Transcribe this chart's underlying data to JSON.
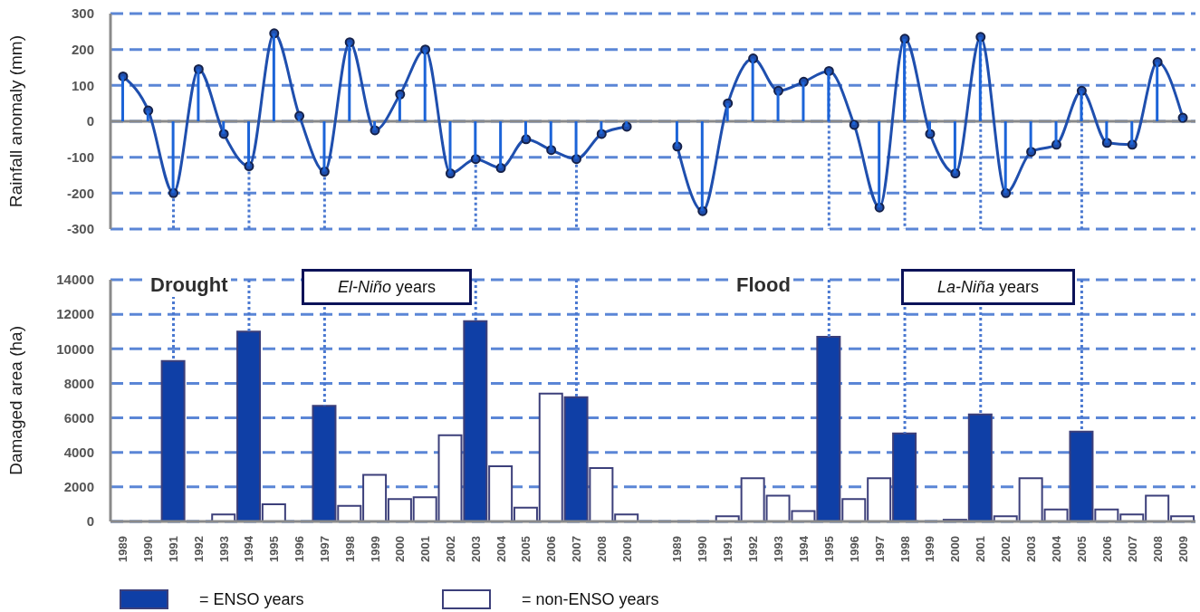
{
  "chart_data": [
    {
      "type": "line",
      "ylabel": "Rainfall anomaly (mm)",
      "categories": [
        "1989",
        "1990",
        "1991",
        "1992",
        "1993",
        "1994",
        "1995",
        "1996",
        "1997",
        "1998",
        "1999",
        "2000",
        "2001",
        "2002",
        "2003",
        "2004",
        "2005",
        "2006",
        "2007",
        "2008",
        "2009"
      ],
      "series": [
        {
          "type": "bar",
          "color": "#1c64d8",
          "values": [
            125,
            30,
            -200,
            145,
            -35,
            -125,
            245,
            15,
            -140,
            220,
            -25,
            75,
            200,
            -145,
            -105,
            -130,
            -50,
            -80,
            -105,
            -35,
            -15
          ]
        },
        {
          "type": "line",
          "color": "#1f4fae",
          "values": [
            125,
            30,
            -200,
            145,
            -35,
            -125,
            245,
            15,
            -140,
            220,
            -25,
            75,
            200,
            -145,
            -105,
            -130,
            -50,
            -80,
            -105,
            -35,
            -15
          ]
        }
      ],
      "ylim": [
        -300,
        300
      ],
      "yticks": [
        -300,
        -200,
        -100,
        0,
        100,
        200,
        300
      ],
      "grid": "y",
      "marker": "circle",
      "tick_labels": "y",
      "ref_lines": [
        {
          "axis": "x",
          "value": "1991",
          "line_style": "dotted",
          "color": "#4a78d0"
        },
        {
          "axis": "x",
          "value": "1994",
          "line_style": "dotted",
          "color": "#4a78d0"
        },
        {
          "axis": "x",
          "value": "1997",
          "line_style": "dotted",
          "color": "#4a78d0"
        },
        {
          "axis": "x",
          "value": "2003",
          "line_style": "dotted",
          "color": "#4a78d0"
        },
        {
          "axis": "x",
          "value": "2007",
          "line_style": "dotted",
          "color": "#4a78d0"
        }
      ]
    },
    {
      "type": "line",
      "categories": [
        null,
        "1989",
        "1990",
        "1991",
        "1992",
        "1993",
        "1994",
        "1995",
        "1996",
        "1997",
        "1998",
        "1999",
        "2000",
        "2001",
        "2002",
        "2003",
        "2004",
        "2005",
        "2006",
        "2007",
        "2008",
        "2009"
      ],
      "series": [
        {
          "type": "bar",
          "color": "#1c64d8",
          "values": [
            null,
            -70,
            -250,
            50,
            175,
            85,
            110,
            140,
            -10,
            -240,
            230,
            -35,
            -145,
            235,
            -200,
            -85,
            -65,
            85,
            -60,
            -65,
            165,
            10
          ]
        },
        {
          "type": "line",
          "color": "#1f4fae",
          "values": [
            null,
            -70,
            -250,
            50,
            175,
            85,
            110,
            140,
            -10,
            -240,
            230,
            -35,
            -145,
            235,
            -200,
            -85,
            -65,
            85,
            -60,
            -65,
            165,
            10
          ]
        }
      ],
      "ylim": [
        -300,
        300
      ],
      "yticks": [
        -300,
        -200,
        -100,
        0,
        100,
        200,
        300
      ],
      "grid": "y",
      "marker": "circle",
      "tick_labels": false,
      "ref_lines": [
        {
          "axis": "x",
          "value": "1995",
          "line_style": "dotted",
          "color": "#4a78d0"
        },
        {
          "axis": "x",
          "value": "1998",
          "line_style": "dotted",
          "color": "#4a78d0"
        },
        {
          "axis": "x",
          "value": "2001",
          "line_style": "dotted",
          "color": "#4a78d0"
        },
        {
          "axis": "x",
          "value": "2005",
          "line_style": "dotted",
          "color": "#4a78d0"
        }
      ]
    },
    {
      "type": "bar",
      "ylabel": "Damaged area (ha)",
      "categories": [
        "1989",
        "1990",
        "1991",
        "1992",
        "1993",
        "1994",
        "1995",
        "1996",
        "1997",
        "1998",
        "1999",
        "2000",
        "2001",
        "2002",
        "2003",
        "2004",
        "2005",
        "2006",
        "2007",
        "2008",
        "2009"
      ],
      "series": [
        {
          "name": "= ENSO years",
          "color": "#0f3fa6",
          "values": [
            null,
            null,
            9300,
            null,
            null,
            11000,
            null,
            null,
            6700,
            null,
            null,
            null,
            null,
            null,
            11600,
            null,
            null,
            null,
            7200,
            null,
            null
          ]
        },
        {
          "name": "= non-ENSO years",
          "color": "#ffffff",
          "values": [
            null,
            null,
            null,
            null,
            400,
            null,
            1000,
            null,
            null,
            900,
            2700,
            1300,
            1400,
            5000,
            null,
            3200,
            800,
            7400,
            null,
            3100,
            400
          ]
        }
      ],
      "stacked": true,
      "ylim": [
        0,
        14000
      ],
      "yticks": [
        0,
        2000,
        4000,
        6000,
        8000,
        10000,
        12000,
        14000
      ],
      "grid": "y",
      "legend": "bottom",
      "annotations": [
        "Drought",
        "El-Niño years"
      ],
      "ref_lines": [
        {
          "axis": "x",
          "value": "1991",
          "line_style": "dotted",
          "color": "#4a78d0"
        },
        {
          "axis": "x",
          "value": "1994",
          "line_style": "dotted",
          "color": "#4a78d0"
        },
        {
          "axis": "x",
          "value": "1997",
          "line_style": "dotted",
          "color": "#4a78d0"
        },
        {
          "axis": "x",
          "value": "2003",
          "line_style": "dotted",
          "color": "#4a78d0"
        },
        {
          "axis": "x",
          "value": "2007",
          "line_style": "dotted",
          "color": "#4a78d0"
        }
      ]
    },
    {
      "type": "bar",
      "categories": [
        null,
        "1989",
        "1990",
        "1991",
        "1992",
        "1993",
        "1994",
        "1995",
        "1996",
        "1997",
        "1998",
        "1999",
        "2000",
        "2001",
        "2002",
        "2003",
        "2004",
        "2005",
        "2006",
        "2007",
        "2008",
        "2009"
      ],
      "series": [
        {
          "color": "#0f3fa6",
          "values": [
            null,
            null,
            null,
            null,
            null,
            null,
            null,
            10700,
            null,
            null,
            5100,
            null,
            null,
            6200,
            null,
            null,
            null,
            5200,
            null,
            null,
            null,
            null
          ]
        },
        {
          "color": "#ffffff",
          "values": [
            null,
            null,
            null,
            300,
            2500,
            1500,
            600,
            null,
            1300,
            2500,
            null,
            null,
            100,
            null,
            300,
            2500,
            700,
            null,
            700,
            400,
            1500,
            300
          ]
        }
      ],
      "stacked": true,
      "ylim": [
        0,
        14000
      ],
      "yticks": [
        0,
        2000,
        4000,
        6000,
        8000,
        10000,
        12000,
        14000
      ],
      "grid": "y",
      "tick_labels": "x",
      "annotations": [
        "Flood",
        "La-Niña years"
      ],
      "ref_lines": [
        {
          "axis": "x",
          "value": "1995",
          "line_style": "dotted",
          "color": "#4a78d0"
        },
        {
          "axis": "x",
          "value": "1998",
          "line_style": "dotted",
          "color": "#4a78d0"
        },
        {
          "axis": "x",
          "value": "2001",
          "line_style": "dotted",
          "color": "#4a78d0"
        },
        {
          "axis": "x",
          "value": "2005",
          "line_style": "dotted",
          "color": "#4a78d0"
        }
      ]
    }
  ]
}
